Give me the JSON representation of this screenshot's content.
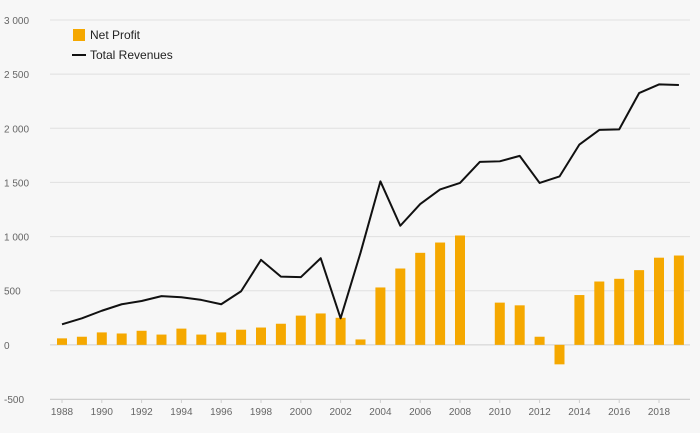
{
  "chart_data": {
    "type": "bar",
    "x": [
      1988,
      1989,
      1990,
      1991,
      1992,
      1993,
      1994,
      1995,
      1996,
      1997,
      1998,
      1999,
      2000,
      2001,
      2002,
      2003,
      2004,
      2005,
      2006,
      2007,
      2008,
      2009,
      2010,
      2011,
      2012,
      2013,
      2014,
      2015,
      2016,
      2017,
      2018,
      2019
    ],
    "x_tick_labels": [
      "1988",
      "1990",
      "1992",
      "1994",
      "1996",
      "1998",
      "2000",
      "2002",
      "2004",
      "2006",
      "2008",
      "2010",
      "2012",
      "2014",
      "2016",
      "2018"
    ],
    "x_tick_years": [
      1988,
      1990,
      1992,
      1994,
      1996,
      1998,
      2000,
      2002,
      2004,
      2006,
      2008,
      2010,
      2012,
      2014,
      2016,
      2018
    ],
    "y_tick_labels": [
      "-500",
      "0",
      "500",
      "1 000",
      "1 500",
      "2 000",
      "2 500",
      "3 000"
    ],
    "y_tick_values": [
      -500,
      0,
      500,
      1000,
      1500,
      2000,
      2500,
      3000
    ],
    "ylim": [
      -500,
      3000
    ],
    "grid": true,
    "legend_position": "top-left",
    "series": [
      {
        "name": "Net Profit",
        "type": "bar",
        "color": "#f5a800",
        "values": [
          60,
          75,
          115,
          105,
          130,
          95,
          150,
          95,
          115,
          140,
          160,
          195,
          270,
          290,
          250,
          50,
          530,
          705,
          850,
          945,
          1010,
          null,
          390,
          365,
          75,
          -180,
          460,
          585,
          610,
          690,
          805,
          825
        ]
      },
      {
        "name": "Total Revenues",
        "type": "line",
        "color": "#111111",
        "values": [
          190,
          245,
          315,
          375,
          405,
          450,
          440,
          415,
          375,
          495,
          785,
          630,
          625,
          800,
          245,
          850,
          1510,
          1100,
          1300,
          1435,
          1495,
          1690,
          1695,
          1745,
          1495,
          1555,
          1850,
          1985,
          1990,
          2325,
          2405,
          2400
        ]
      }
    ]
  }
}
